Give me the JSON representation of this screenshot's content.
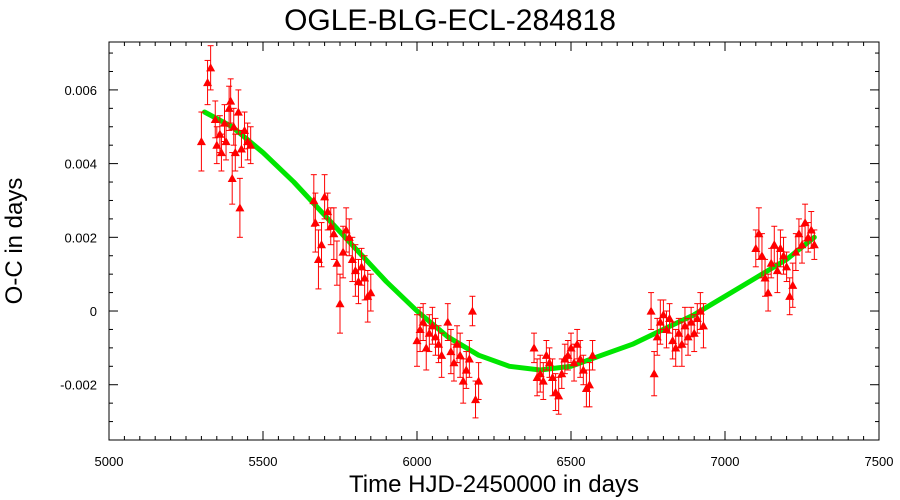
{
  "chart_data": {
    "type": "scatter",
    "title": "OGLE-BLG-ECL-284818",
    "xlabel": "Time HJD-2450000 in days",
    "ylabel": "O-C in days",
    "xlim": [
      5000,
      7500
    ],
    "ylim": [
      -0.0035,
      0.0073
    ],
    "x_ticks": [
      5000,
      5500,
      6000,
      6500,
      7000,
      7500
    ],
    "x_tick_labels": [
      "5000",
      "5500",
      "6000",
      "6500",
      "7000",
      "7500"
    ],
    "y_ticks": [
      -0.002,
      0,
      0.002,
      0.004,
      0.006
    ],
    "y_tick_labels": [
      "-0.002",
      "0",
      "0.002",
      "0.004",
      "0.006"
    ],
    "grid": false,
    "legend": "none",
    "colors": {
      "points": "#ff0000",
      "fit": "#00e600"
    },
    "series": [
      {
        "kind": "points",
        "x": [
          5300,
          5320,
          5330,
          5345,
          5350,
          5360,
          5365,
          5375,
          5380,
          5390,
          5395,
          5400,
          5405,
          5410,
          5420,
          5425,
          5430,
          5440,
          5450,
          5460,
          5665,
          5670,
          5680,
          5690,
          5700,
          5710,
          5720,
          5730,
          5740,
          5750,
          5760,
          5770,
          5780,
          5790,
          5800,
          5810,
          5820,
          5830,
          5840,
          5850,
          6000,
          6010,
          6020,
          6030,
          6040,
          6050,
          6060,
          6070,
          6080,
          6100,
          6110,
          6120,
          6130,
          6140,
          6150,
          6160,
          6170,
          6180,
          6190,
          6200,
          6380,
          6390,
          6400,
          6410,
          6420,
          6430,
          6440,
          6450,
          6460,
          6470,
          6480,
          6490,
          6500,
          6510,
          6520,
          6530,
          6540,
          6550,
          6560,
          6570,
          6760,
          6770,
          6780,
          6790,
          6800,
          6810,
          6820,
          6830,
          6840,
          6850,
          6860,
          6870,
          6880,
          6890,
          6900,
          6910,
          6920,
          6930,
          7100,
          7110,
          7120,
          7130,
          7140,
          7150,
          7160,
          7170,
          7180,
          7190,
          7200,
          7210,
          7220,
          7230,
          7240,
          7250,
          7260,
          7270,
          7280,
          7290
        ],
        "y": [
          0.0046,
          0.0062,
          0.0066,
          0.0052,
          0.0045,
          0.0048,
          0.0043,
          0.0051,
          0.0046,
          0.0055,
          0.0057,
          0.0036,
          0.005,
          0.0043,
          0.0054,
          0.0028,
          0.0044,
          0.0049,
          0.0046,
          0.0045,
          0.003,
          0.0024,
          0.0014,
          0.0018,
          0.0031,
          0.0027,
          0.0023,
          0.0021,
          0.0013,
          0.0002,
          0.0016,
          0.0022,
          0.002,
          0.0014,
          0.0011,
          0.0008,
          0.0012,
          0.0009,
          0.0004,
          0.0005,
          -0.0008,
          -0.0005,
          -0.0003,
          -0.001,
          -0.0006,
          -0.0004,
          -0.0007,
          -0.0009,
          -0.0012,
          -0.0003,
          -0.0011,
          -0.0014,
          -0.0009,
          -0.0012,
          -0.0019,
          -0.0016,
          -0.0013,
          0.0,
          -0.0024,
          -0.0019,
          -0.001,
          -0.0018,
          -0.0017,
          -0.0019,
          -0.0012,
          -0.0014,
          -0.0018,
          -0.0022,
          -0.0023,
          -0.0017,
          -0.0013,
          -0.0012,
          -0.001,
          -0.0014,
          -0.0009,
          -0.0013,
          -0.0016,
          -0.0021,
          -0.002,
          -0.0012,
          0.0,
          -0.0017,
          -0.0007,
          -0.0003,
          -0.0001,
          -0.0005,
          -0.0002,
          -0.0008,
          -0.001,
          -0.0006,
          -0.0009,
          -0.0004,
          -0.0007,
          -0.0003,
          -0.0006,
          -0.0002,
          0.0,
          -0.0004,
          0.0017,
          0.0021,
          0.0015,
          0.0009,
          0.0005,
          0.0013,
          0.0018,
          0.0011,
          0.0017,
          0.0015,
          0.0012,
          0.0004,
          0.0007,
          0.0016,
          0.0021,
          0.0018,
          0.0024,
          0.002,
          0.0022,
          0.0018
        ],
        "err": [
          0.0008,
          0.0006,
          0.0006,
          0.0005,
          0.0005,
          0.0005,
          0.0005,
          0.0005,
          0.0005,
          0.0006,
          0.0006,
          0.0007,
          0.0005,
          0.0005,
          0.0006,
          0.0008,
          0.0005,
          0.0005,
          0.0005,
          0.0005,
          0.0007,
          0.0008,
          0.0008,
          0.0006,
          0.0006,
          0.0005,
          0.0005,
          0.0007,
          0.0006,
          0.0008,
          0.0007,
          0.0006,
          0.0005,
          0.0006,
          0.0007,
          0.0006,
          0.0005,
          0.0006,
          0.0007,
          0.0005,
          0.0007,
          0.0006,
          0.0005,
          0.0006,
          0.0005,
          0.0005,
          0.0005,
          0.0005,
          0.0006,
          0.0005,
          0.0006,
          0.0005,
          0.0005,
          0.0006,
          0.0006,
          0.0005,
          0.0005,
          0.0004,
          0.0005,
          0.0005,
          0.0004,
          0.0005,
          0.0005,
          0.0005,
          0.0004,
          0.0004,
          0.0005,
          0.0005,
          0.0005,
          0.0004,
          0.0004,
          0.0004,
          0.0004,
          0.0005,
          0.0004,
          0.0005,
          0.0004,
          0.0005,
          0.0006,
          0.0004,
          0.0005,
          0.0006,
          0.0005,
          0.0006,
          0.0004,
          0.0005,
          0.0004,
          0.0005,
          0.0005,
          0.0004,
          0.0006,
          0.0005,
          0.0005,
          0.0004,
          0.0005,
          0.0004,
          0.0005,
          0.0006,
          0.0005,
          0.0007,
          0.0006,
          0.0005,
          0.0005,
          0.0004,
          0.0005,
          0.0006,
          0.0005,
          0.0005,
          0.0004,
          0.0005,
          0.0006,
          0.0005,
          0.0004,
          0.0005,
          0.0005,
          0.0004,
          0.0005,
          0.0004
        ]
      },
      {
        "kind": "line",
        "x": [
          5310,
          5400,
          5500,
          5600,
          5700,
          5800,
          5900,
          6000,
          6100,
          6200,
          6300,
          6400,
          6450,
          6500,
          6600,
          6700,
          6800,
          6900,
          7000,
          7100,
          7200,
          7290
        ],
        "y": [
          0.0054,
          0.005,
          0.0043,
          0.0035,
          0.0026,
          0.0017,
          0.0008,
          0.0,
          -0.0007,
          -0.0012,
          -0.0015,
          -0.0016,
          -0.00155,
          -0.0015,
          -0.0012,
          -0.0009,
          -0.0005,
          -0.0001,
          0.0004,
          0.0009,
          0.0014,
          0.002
        ]
      }
    ]
  }
}
